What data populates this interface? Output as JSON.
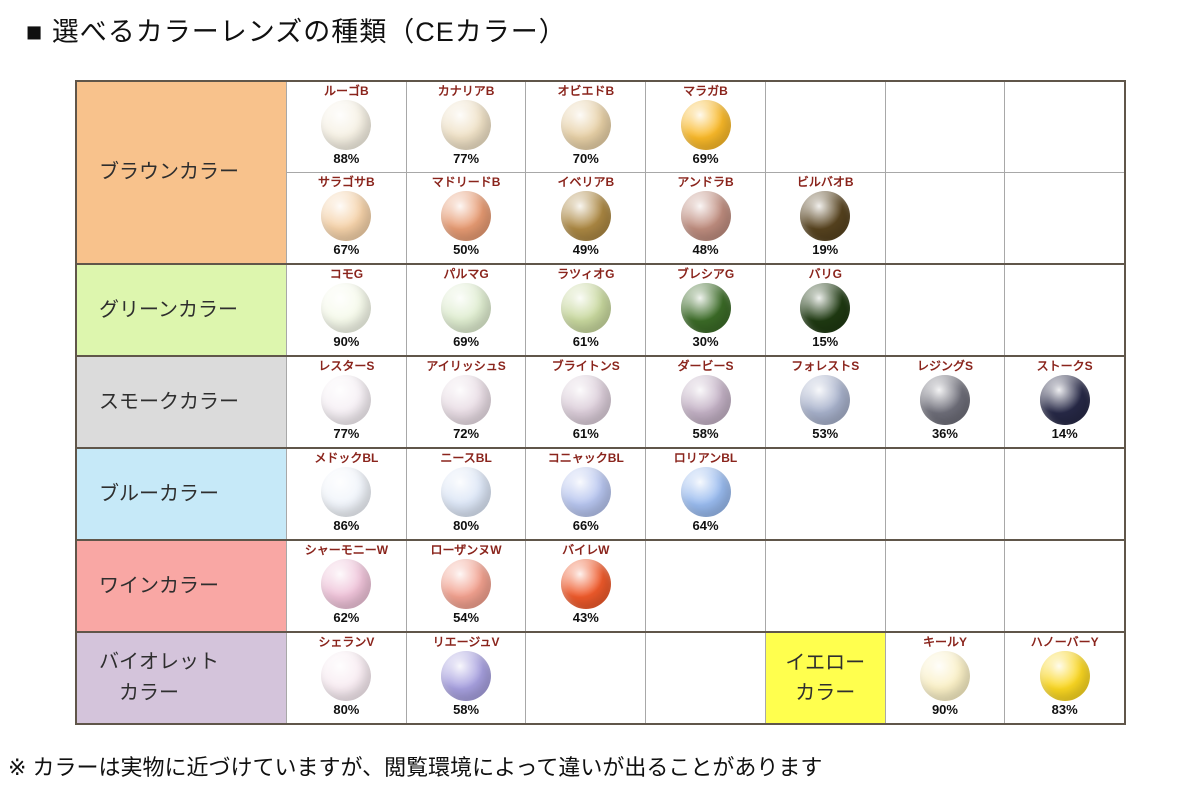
{
  "page": {
    "title": "■ 選べるカラーレンズの種類（CEカラー）",
    "note": "※ カラーは実物に近づけていますが、閲覧環境によって違いが出ることがあります"
  },
  "palette": {
    "border_dark": "#60564a",
    "border_light": "#a8a8a8",
    "lens_name_text": "#8a241c",
    "percent_text": "#101010",
    "category_text": "#2e2e2e",
    "background": "#ffffff"
  },
  "chart_data": {
    "type": "table",
    "title": "選べるカラーレンズの種類（CEカラー）",
    "columns": 7,
    "rows": [
      {
        "category": "ブラウンカラー",
        "bg": "#F8C28C",
        "subrows": [
          [
            {
              "col": 0,
              "name": "ルーゴB",
              "percent": "88%",
              "color": "#F6F1E4"
            },
            {
              "col": 1,
              "name": "カナリアB",
              "percent": "77%",
              "color": "#EFE1C6"
            },
            {
              "col": 2,
              "name": "オビエドB",
              "percent": "70%",
              "color": "#E7D0A6"
            },
            {
              "col": 3,
              "name": "マラガB",
              "percent": "69%",
              "color": "#F9B929"
            }
          ],
          [
            {
              "col": 0,
              "name": "サラゴサB",
              "percent": "67%",
              "color": "#F5D2A9"
            },
            {
              "col": 1,
              "name": "マドリードB",
              "percent": "50%",
              "color": "#E79B73"
            },
            {
              "col": 2,
              "name": "イベリアB",
              "percent": "49%",
              "color": "#AC8843"
            },
            {
              "col": 3,
              "name": "アンドラB",
              "percent": "48%",
              "color": "#BF8D7F"
            },
            {
              "col": 4,
              "name": "ビルバオB",
              "percent": "19%",
              "color": "#57431F"
            }
          ]
        ]
      },
      {
        "category": "グリーンカラー",
        "bg": "#DDF6AE",
        "subrows": [
          [
            {
              "col": 0,
              "name": "コモG",
              "percent": "90%",
              "color": "#F6FAEB"
            },
            {
              "col": 1,
              "name": "パルマG",
              "percent": "69%",
              "color": "#DFEDD0"
            },
            {
              "col": 2,
              "name": "ラツィオG",
              "percent": "61%",
              "color": "#C8D89E"
            },
            {
              "col": 3,
              "name": "ブレシアG",
              "percent": "30%",
              "color": "#3B6B27"
            },
            {
              "col": 4,
              "name": "バリG",
              "percent": "15%",
              "color": "#1F3A12"
            }
          ]
        ]
      },
      {
        "category": "スモークカラー",
        "bg": "#DBDBDB",
        "subrows": [
          [
            {
              "col": 0,
              "name": "レスターS",
              "percent": "77%",
              "color": "#F6F0F5"
            },
            {
              "col": 1,
              "name": "アイリッシュS",
              "percent": "72%",
              "color": "#E9DDE5"
            },
            {
              "col": 2,
              "name": "ブライトンS",
              "percent": "61%",
              "color": "#DBCDD9"
            },
            {
              "col": 3,
              "name": "ダービーS",
              "percent": "58%",
              "color": "#C3B1C5"
            },
            {
              "col": 4,
              "name": "フォレストS",
              "percent": "53%",
              "color": "#A7B1CB"
            },
            {
              "col": 5,
              "name": "レジングS",
              "percent": "36%",
              "color": "#6E6E79"
            },
            {
              "col": 6,
              "name": "ストークS",
              "percent": "14%",
              "color": "#272947"
            }
          ]
        ]
      },
      {
        "category": "ブルーカラー",
        "bg": "#C6E9F8",
        "subrows": [
          [
            {
              "col": 0,
              "name": "メドックBL",
              "percent": "86%",
              "color": "#F1F5FB"
            },
            {
              "col": 1,
              "name": "ニースBL",
              "percent": "80%",
              "color": "#DCE6F6"
            },
            {
              "col": 2,
              "name": "コニャックBL",
              "percent": "66%",
              "color": "#B7C5EF"
            },
            {
              "col": 3,
              "name": "ロリアンBL",
              "percent": "64%",
              "color": "#99BBEF"
            }
          ]
        ]
      },
      {
        "category": "ワインカラー",
        "bg": "#F9A7A4",
        "subrows": [
          [
            {
              "col": 0,
              "name": "シャーモニーW",
              "percent": "62%",
              "color": "#EFC3D9"
            },
            {
              "col": 1,
              "name": "ローザンヌW",
              "percent": "54%",
              "color": "#F2A18F"
            },
            {
              "col": 2,
              "name": "バイレW",
              "percent": "43%",
              "color": "#EF5A2B"
            }
          ]
        ]
      },
      {
        "category": "バイオレット\n　カラー",
        "bg": "#D4C4DB",
        "subrows": [
          [
            {
              "col": 0,
              "name": "シェランV",
              "percent": "80%",
              "color": "#F8ECF2"
            },
            {
              "col": 1,
              "name": "リエージュV",
              "percent": "58%",
              "color": "#A7A0DF"
            },
            {
              "col": 4,
              "type": "category",
              "label": "イエロー\nカラー",
              "bg": "#FFFF4E"
            },
            {
              "col": 5,
              "name": "キールY",
              "percent": "90%",
              "color": "#FAF0C6"
            },
            {
              "col": 6,
              "name": "ハノーバーY",
              "percent": "83%",
              "color": "#FAD722"
            }
          ]
        ]
      }
    ]
  }
}
